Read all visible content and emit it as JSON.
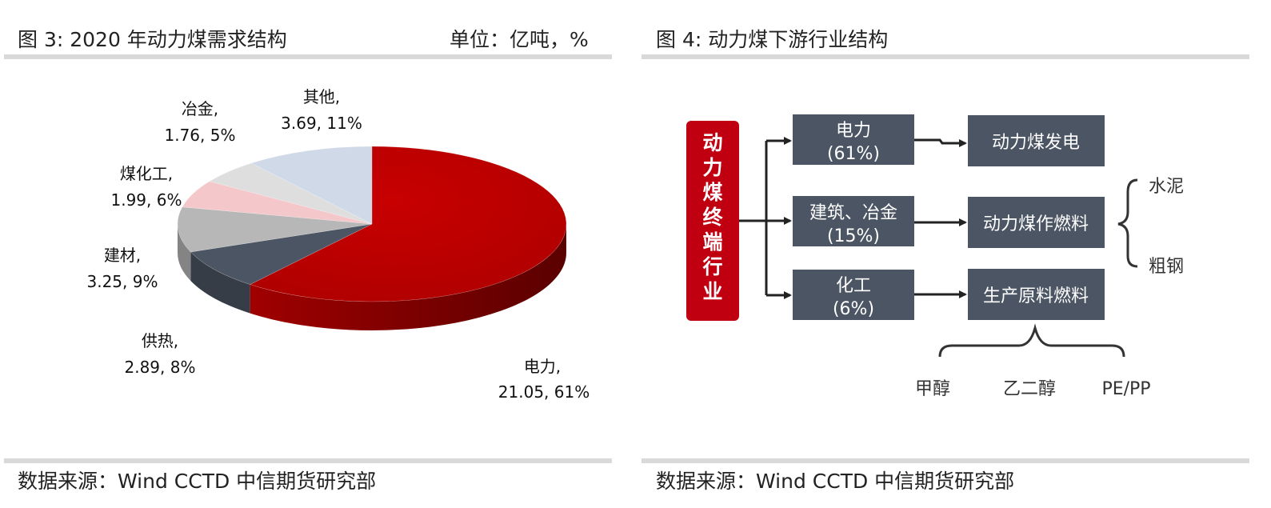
{
  "left": {
    "title": "图 3:  2020 年动力煤需求结构",
    "unit": "单位：亿吨，%",
    "source": "数据来源：Wind CCTD 中信期货研究部"
  },
  "right": {
    "title": "图 4:  动力煤下游行业结构",
    "source": "数据来源：Wind CCTD 中信期货研究部"
  },
  "chart_data": [
    {
      "type": "pie",
      "title": "2020 年动力煤需求结构",
      "unit": "亿吨，%",
      "slices": [
        {
          "name": "电力",
          "value": 21.05,
          "percent": 61,
          "color": "#c00000",
          "label_line1": "电力,",
          "label_line2": "21.05, 61%"
        },
        {
          "name": "供热",
          "value": 2.89,
          "percent": 8,
          "color": "#4b5563",
          "label_line1": "供热,",
          "label_line2": "2.89, 8%"
        },
        {
          "name": "建材",
          "value": 3.25,
          "percent": 9,
          "color": "#b7b7b7",
          "label_line1": "建材,",
          "label_line2": "3.25, 9%"
        },
        {
          "name": "煤化工",
          "value": 1.99,
          "percent": 6,
          "color": "#f4c7cb",
          "label_line1": "煤化工,",
          "label_line2": "1.99, 6%"
        },
        {
          "name": "冶金",
          "value": 1.76,
          "percent": 5,
          "color": "#dedede",
          "label_line1": "冶金,",
          "label_line2": "1.76, 5%"
        },
        {
          "name": "其他",
          "value": 3.69,
          "percent": 11,
          "color": "#cfd9e8",
          "label_line1": "其他,",
          "label_line2": "3.69, 11%"
        }
      ]
    }
  ],
  "diagram": {
    "root": "动力煤终端行业",
    "sectors": [
      {
        "name": "电力",
        "share": "(61%)",
        "target": "动力煤发电"
      },
      {
        "name": "建筑、冶金",
        "share": "(15%)",
        "target": "动力煤作燃料"
      },
      {
        "name": "化工",
        "share": "(6%)",
        "target": "生产原料燃料"
      }
    ],
    "fuel_uses": [
      "水泥",
      "粗钢"
    ],
    "chem_products": [
      "甲醇",
      "乙二醇",
      "PE/PP"
    ],
    "colors": {
      "root": "#c00010",
      "box": "#4b5563",
      "pie_red": "#c00000"
    }
  }
}
